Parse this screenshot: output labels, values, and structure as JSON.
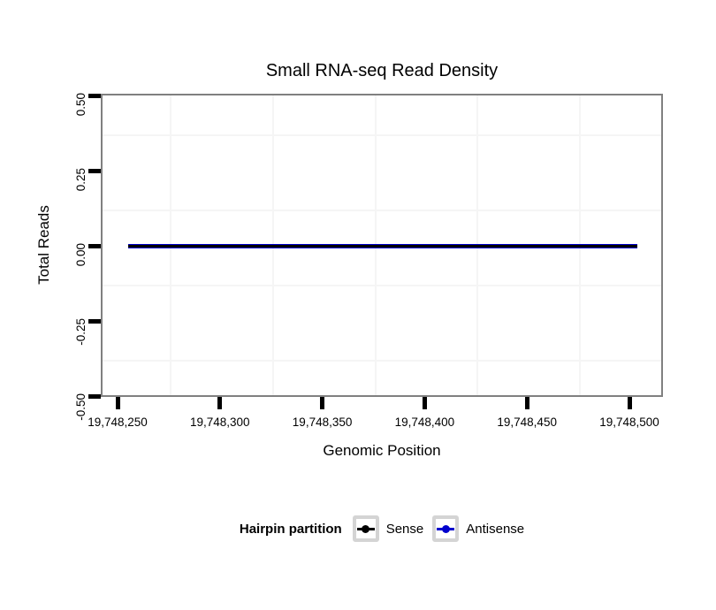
{
  "page": {
    "background": "#FFFFFF"
  },
  "chart_data": {
    "type": "line",
    "title": "Small RNA-seq Read Density",
    "xlabel": "Genomic Position",
    "ylabel": "Total Reads",
    "x_ticks": [
      {
        "value": 19748250,
        "label": "19,748,250"
      },
      {
        "value": 19748300,
        "label": "19,748,300"
      },
      {
        "value": 19748350,
        "label": "19,748,350"
      },
      {
        "value": 19748400,
        "label": "19,748,400"
      },
      {
        "value": 19748450,
        "label": "19,748,450"
      },
      {
        "value": 19748500,
        "label": "19,748,500"
      }
    ],
    "y_ticks": [
      {
        "value": 0.5,
        "label": "0.50"
      },
      {
        "value": 0.25,
        "label": "0.25"
      },
      {
        "value": 0.0,
        "label": "0.00"
      },
      {
        "value": -0.25,
        "label": "-0.25"
      },
      {
        "value": -0.5,
        "label": "-0.50"
      }
    ],
    "xlim": [
      19748242,
      19748516
    ],
    "ylim": [
      -0.5,
      0.5
    ],
    "grid": {
      "visible": "minor-only",
      "color": "#F5F5F5"
    },
    "series": [
      {
        "name": "Sense",
        "color": "#000000",
        "x_start": 19748255,
        "x_end": 19748504,
        "y": 0
      },
      {
        "name": "Antisense",
        "color": "#0000CD",
        "x_start": 19748255,
        "x_end": 19748504,
        "y": 0
      }
    ],
    "legend": {
      "title": "Hairpin partition",
      "position": "bottom",
      "entries": [
        {
          "label": "Sense",
          "color": "#000000"
        },
        {
          "label": "Antisense",
          "color": "#0000CD"
        }
      ]
    }
  },
  "colors": {
    "panel_border": "#808080",
    "tick_mark": "#000000",
    "gridline": "#F5F5F5",
    "legend_key_border": "#D4D4D4",
    "text": "#000000"
  }
}
